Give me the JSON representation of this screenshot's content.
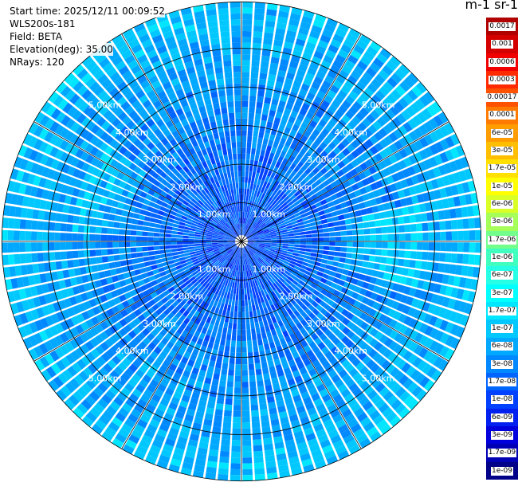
{
  "info": {
    "start_time": "Start time: 2025/12/11 00:09:52",
    "instrument": "WLS200s-181",
    "field": "Field: BETA",
    "elevation": "Elevation(deg): 35.00",
    "nrays": "NRays: 120"
  },
  "colorbar": {
    "unit_label": "m-1 sr-1",
    "labels": [
      "0.0017",
      "0.001",
      "0.0006",
      "0.0003",
      "0.00017",
      "0.0001",
      "6e-05",
      "3e-05",
      "1.7e-05",
      "1e-05",
      "6e-06",
      "3e-06",
      "1.7e-06",
      "1e-06",
      "6e-07",
      "3e-07",
      "1.7e-07",
      "1e-07",
      "6e-08",
      "3e-08",
      "1.7e-08",
      "1e-08",
      "6e-09",
      "3e-09",
      "1.7e-09",
      "1e-09"
    ],
    "colors": [
      "#b00000",
      "#d40000",
      "#f00000",
      "#ff2a00",
      "#ff5200",
      "#ff7a00",
      "#ff9c00",
      "#ffbf00",
      "#ffe000",
      "#ffff00",
      "#d9ff26",
      "#a6ff59",
      "#73ff8c",
      "#40ffbf",
      "#26ffe6",
      "#00ffff",
      "#00e6ff",
      "#00c8ff",
      "#00a8ff",
      "#0088ff",
      "#0064ff",
      "#0040ff",
      "#0020f0",
      "#0000dc",
      "#0000b4",
      "#000088"
    ]
  },
  "chart_data": {
    "type": "heatmap",
    "projection": "polar-ppi",
    "field": "BETA",
    "elevation_deg": 35.0,
    "n_rays": 120,
    "range_rings_km": [
      1,
      2,
      3,
      4,
      5
    ],
    "ring_labels": [
      "1.00km",
      "2.00km",
      "3.00km",
      "4.00km",
      "5.00km"
    ],
    "max_range_km": 6.2,
    "colorscale": "log",
    "value_range": [
      1e-09,
      0.0017
    ],
    "typical_value_range": [
      1e-08,
      1.7e-07
    ],
    "grid": true
  }
}
